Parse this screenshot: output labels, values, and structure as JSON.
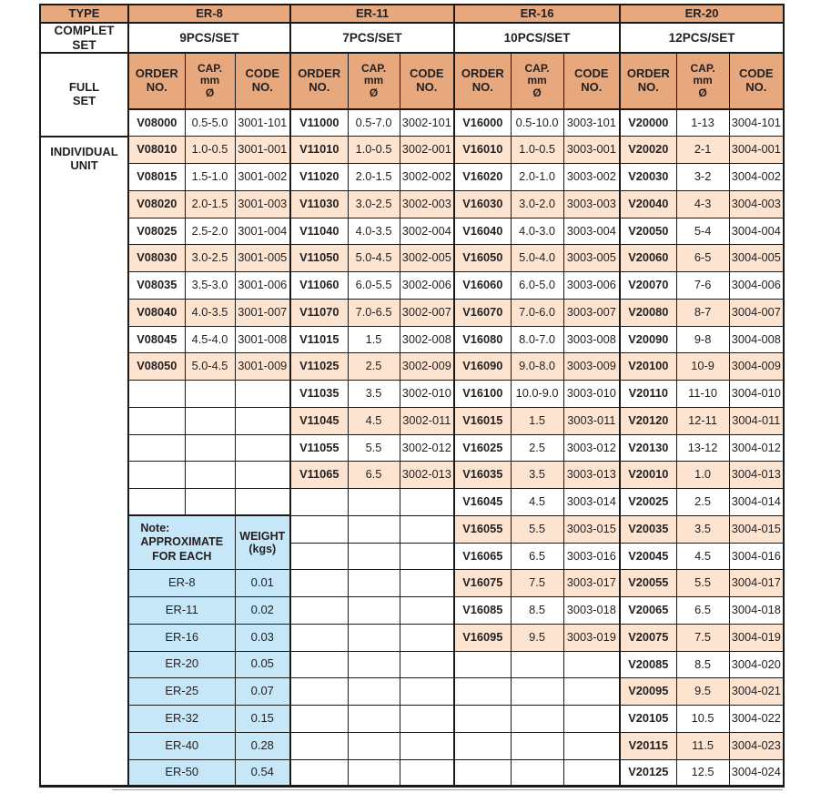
{
  "colors": {
    "header_bg": "#e8a87e",
    "row_alt_bg": "#fce4d0",
    "note_bg": "#c5e7f8",
    "border": "#1a1a1a",
    "text": "#231f20"
  },
  "table": {
    "type_label": "TYPE",
    "complet_set_label": "COMPLET\nSET",
    "full_set_label": "FULL\nSET",
    "individual_unit_label": "INDIVIDUAL\nUNIT",
    "col_headers": {
      "order": "ORDER\nNO.",
      "cap": "CAP.\nmm\nØ",
      "code": "CODE\nNO."
    },
    "sections": [
      {
        "name": "ER-8",
        "set": "9PCS/SET"
      },
      {
        "name": "ER-11",
        "set": "7PCS/SET"
      },
      {
        "name": "ER-16",
        "set": "10PCS/SET"
      },
      {
        "name": "ER-20",
        "set": "12PCS/SET"
      }
    ],
    "full_set_row": [
      {
        "order": "V08000",
        "cap": "0.5-5.0",
        "code": "3001-101"
      },
      {
        "order": "V11000",
        "cap": "0.5-7.0",
        "code": "3002-101"
      },
      {
        "order": "V16000",
        "cap": "0.5-10.0",
        "code": "3003-101"
      },
      {
        "order": "V20000",
        "cap": "1-13",
        "code": "3004-101"
      }
    ],
    "individual_rows": [
      {
        "er8": {
          "order": "V08010",
          "cap": "1.0-0.5",
          "code": "3001-001"
        },
        "er11": {
          "order": "V11010",
          "cap": "1.0-0.5",
          "code": "3002-001"
        },
        "er16": {
          "order": "V16010",
          "cap": "1.0-0.5",
          "code": "3003-001"
        },
        "er20": {
          "order": "V20020",
          "cap": "2-1",
          "code": "3004-001"
        }
      },
      {
        "er8": {
          "order": "V08015",
          "cap": "1.5-1.0",
          "code": "3001-002"
        },
        "er11": {
          "order": "V11020",
          "cap": "2.0-1.5",
          "code": "3002-002"
        },
        "er16": {
          "order": "V16020",
          "cap": "2.0-1.0",
          "code": "3003-002"
        },
        "er20": {
          "order": "V20030",
          "cap": "3-2",
          "code": "3004-002"
        }
      },
      {
        "er8": {
          "order": "V08020",
          "cap": "2.0-1.5",
          "code": "3001-003"
        },
        "er11": {
          "order": "V11030",
          "cap": "3.0-2.5",
          "code": "3002-003"
        },
        "er16": {
          "order": "V16030",
          "cap": "3.0-2.0",
          "code": "3003-003"
        },
        "er20": {
          "order": "V20040",
          "cap": "4-3",
          "code": "3004-003"
        }
      },
      {
        "er8": {
          "order": "V08025",
          "cap": "2.5-2.0",
          "code": "3001-004"
        },
        "er11": {
          "order": "V11040",
          "cap": "4.0-3.5",
          "code": "3002-004"
        },
        "er16": {
          "order": "V16040",
          "cap": "4.0-3.0",
          "code": "3003-004"
        },
        "er20": {
          "order": "V20050",
          "cap": "5-4",
          "code": "3004-004"
        }
      },
      {
        "er8": {
          "order": "V08030",
          "cap": "3.0-2.5",
          "code": "3001-005"
        },
        "er11": {
          "order": "V11050",
          "cap": "5.0-4.5",
          "code": "3002-005"
        },
        "er16": {
          "order": "V16050",
          "cap": "5.0-4.0",
          "code": "3003-005"
        },
        "er20": {
          "order": "V20060",
          "cap": "6-5",
          "code": "3004-005"
        }
      },
      {
        "er8": {
          "order": "V08035",
          "cap": "3.5-3.0",
          "code": "3001-006"
        },
        "er11": {
          "order": "V11060",
          "cap": "6.0-5.5",
          "code": "3002-006"
        },
        "er16": {
          "order": "V16060",
          "cap": "6.0-5.0",
          "code": "3003-006"
        },
        "er20": {
          "order": "V20070",
          "cap": "7-6",
          "code": "3004-006"
        }
      },
      {
        "er8": {
          "order": "V08040",
          "cap": "4.0-3.5",
          "code": "3001-007"
        },
        "er11": {
          "order": "V11070",
          "cap": "7.0-6.5",
          "code": "3002-007"
        },
        "er16": {
          "order": "V16070",
          "cap": "7.0-6.0",
          "code": "3003-007"
        },
        "er20": {
          "order": "V20080",
          "cap": "8-7",
          "code": "3004-007"
        }
      },
      {
        "er8": {
          "order": "V08045",
          "cap": "4.5-4.0",
          "code": "3001-008"
        },
        "er11": {
          "order": "V11015",
          "cap": "1.5",
          "code": "3002-008"
        },
        "er16": {
          "order": "V16080",
          "cap": "8.0-7.0",
          "code": "3003-008"
        },
        "er20": {
          "order": "V20090",
          "cap": "9-8",
          "code": "3004-008"
        }
      },
      {
        "er8": {
          "order": "V08050",
          "cap": "5.0-4.5",
          "code": "3001-009"
        },
        "er11": {
          "order": "V11025",
          "cap": "2.5",
          "code": "3002-009"
        },
        "er16": {
          "order": "V16090",
          "cap": "9.0-8.0",
          "code": "3003-009"
        },
        "er20": {
          "order": "V20100",
          "cap": "10-9",
          "code": "3004-009"
        }
      },
      {
        "er8": null,
        "er11": {
          "order": "V11035",
          "cap": "3.5",
          "code": "3002-010"
        },
        "er16": {
          "order": "V16100",
          "cap": "10.0-9.0",
          "code": "3003-010"
        },
        "er20": {
          "order": "V20110",
          "cap": "11-10",
          "code": "3004-010"
        }
      },
      {
        "er8": null,
        "er11": {
          "order": "V11045",
          "cap": "4.5",
          "code": "3002-011"
        },
        "er16": {
          "order": "V16015",
          "cap": "1.5",
          "code": "3003-011"
        },
        "er20": {
          "order": "V20120",
          "cap": "12-11",
          "code": "3004-011"
        }
      },
      {
        "er8": null,
        "er11": {
          "order": "V11055",
          "cap": "5.5",
          "code": "3002-012"
        },
        "er16": {
          "order": "V16025",
          "cap": "2.5",
          "code": "3003-012"
        },
        "er20": {
          "order": "V20130",
          "cap": "13-12",
          "code": "3004-012"
        }
      },
      {
        "er8": null,
        "er11": {
          "order": "V11065",
          "cap": "6.5",
          "code": "3002-013"
        },
        "er16": {
          "order": "V16035",
          "cap": "3.5",
          "code": "3003-013"
        },
        "er20": {
          "order": "V20010",
          "cap": "1.0",
          "code": "3004-013"
        }
      },
      {
        "er8": null,
        "er11": null,
        "er16": {
          "order": "V16045",
          "cap": "4.5",
          "code": "3003-014"
        },
        "er20": {
          "order": "V20025",
          "cap": "2.5",
          "code": "3004-014"
        }
      },
      {
        "er8": null,
        "er11": null,
        "er16": {
          "order": "V16055",
          "cap": "5.5",
          "code": "3003-015"
        },
        "er20": {
          "order": "V20035",
          "cap": "3.5",
          "code": "3004-015"
        }
      },
      {
        "er8": null,
        "er11": null,
        "er16": {
          "order": "V16065",
          "cap": "6.5",
          "code": "3003-016"
        },
        "er20": {
          "order": "V20045",
          "cap": "4.5",
          "code": "3004-016"
        }
      },
      {
        "er8": null,
        "er11": null,
        "er16": {
          "order": "V16075",
          "cap": "7.5",
          "code": "3003-017"
        },
        "er20": {
          "order": "V20055",
          "cap": "5.5",
          "code": "3004-017"
        }
      },
      {
        "er8": null,
        "er11": null,
        "er16": {
          "order": "V16085",
          "cap": "8.5",
          "code": "3003-018"
        },
        "er20": {
          "order": "V20065",
          "cap": "6.5",
          "code": "3004-018"
        }
      },
      {
        "er8": null,
        "er11": null,
        "er16": {
          "order": "V16095",
          "cap": "9.5",
          "code": "3003-019"
        },
        "er20": {
          "order": "V20075",
          "cap": "7.5",
          "code": "3004-019"
        }
      },
      {
        "er8": null,
        "er11": null,
        "er16": null,
        "er20": {
          "order": "V20085",
          "cap": "8.5",
          "code": "3004-020"
        }
      },
      {
        "er8": null,
        "er11": null,
        "er16": null,
        "er20": {
          "order": "V20095",
          "cap": "9.5",
          "code": "3004-021"
        }
      },
      {
        "er8": null,
        "er11": null,
        "er16": null,
        "er20": {
          "order": "V20105",
          "cap": "10.5",
          "code": "3004-022"
        }
      },
      {
        "er8": null,
        "er11": null,
        "er16": null,
        "er20": {
          "order": "V20115",
          "cap": "11.5",
          "code": "3004-023"
        }
      },
      {
        "er8": null,
        "er11": null,
        "er16": null,
        "er20": {
          "order": "V20125",
          "cap": "12.5",
          "code": "3004-024"
        }
      }
    ]
  },
  "note": {
    "title": "Note:",
    "subtitle_lines": [
      "APPROXIMATE",
      "FOR EACH"
    ],
    "weight_header": "WEIGHT\n(kgs)",
    "rows": [
      [
        "ER-8",
        "0.01"
      ],
      [
        "ER-11",
        "0.02"
      ],
      [
        "ER-16",
        "0.03"
      ],
      [
        "ER-20",
        "0.05"
      ],
      [
        "ER-25",
        "0.07"
      ],
      [
        "ER-32",
        "0.15"
      ],
      [
        "ER-40",
        "0.28"
      ],
      [
        "ER-50",
        "0.54"
      ]
    ]
  }
}
